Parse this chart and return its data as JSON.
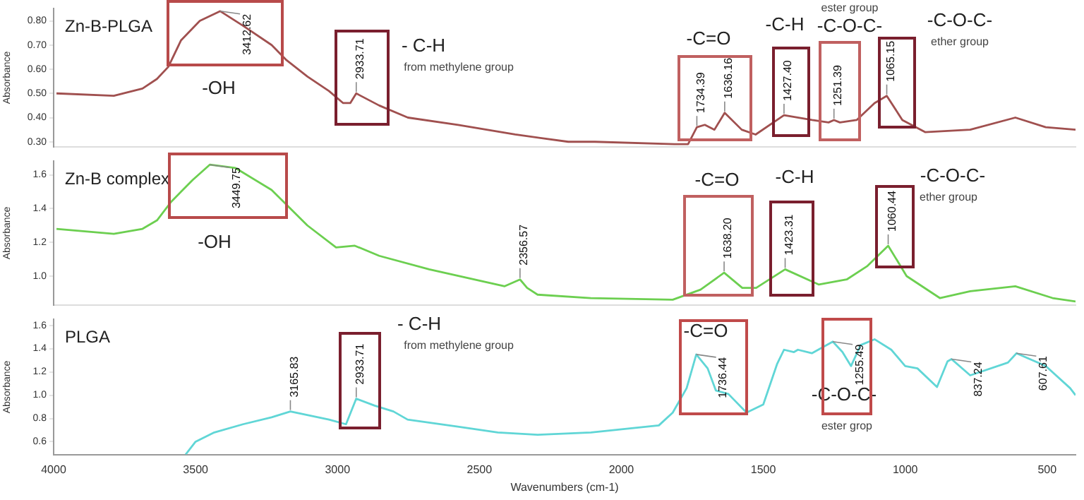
{
  "chart_data": [
    {
      "type": "line",
      "title": "Zn-B-PLGA",
      "ylabel": "Absorbance",
      "xlim": [
        4000,
        400
      ],
      "ylim": [
        0.28,
        0.85
      ],
      "yticks": [
        {
          "value": 0.3,
          "label": "0.30"
        },
        {
          "value": 0.4,
          "label": "0.40"
        },
        {
          "value": 0.5,
          "label": "0.50"
        },
        {
          "value": 0.6,
          "label": "0.60"
        },
        {
          "value": 0.7,
          "label": "0.70"
        },
        {
          "value": 0.8,
          "label": "0.80"
        }
      ],
      "tick_labels": "y",
      "marker": "none",
      "series": [
        {
          "color": "#a0504f",
          "x": [
            3990,
            3788,
            3687,
            3636,
            3596,
            3551,
            3485,
            3413,
            3333,
            3232,
            3182,
            3106,
            3030,
            2980,
            2955,
            2934,
            2853,
            2752,
            2575,
            2374,
            2187,
            2093,
            1813,
            1765,
            1734,
            1706,
            1672,
            1636,
            1576,
            1527,
            1427,
            1328,
            1270,
            1251,
            1230,
            1171,
            1108,
            1065,
            1010,
            930,
            771,
            612,
            505,
            400
          ],
          "values": [
            0.5,
            0.49,
            0.52,
            0.56,
            0.61,
            0.72,
            0.8,
            0.84,
            0.78,
            0.7,
            0.64,
            0.57,
            0.51,
            0.46,
            0.46,
            0.5,
            0.45,
            0.4,
            0.37,
            0.33,
            0.3,
            0.3,
            0.29,
            0.29,
            0.36,
            0.37,
            0.35,
            0.42,
            0.35,
            0.33,
            0.41,
            0.39,
            0.38,
            0.39,
            0.38,
            0.39,
            0.46,
            0.49,
            0.39,
            0.34,
            0.35,
            0.4,
            0.36,
            0.35
          ]
        }
      ],
      "annotations": [
        {
          "text": "3412.62",
          "x": 3413,
          "y": 0.84
        },
        {
          "text": "2933.71",
          "x": 2934,
          "y": 0.5
        },
        {
          "text": "1734.39",
          "x": 1734,
          "y": 0.36
        },
        {
          "text": "1636.16",
          "x": 1636,
          "y": 0.42
        },
        {
          "text": "1427.40",
          "x": 1427,
          "y": 0.41
        },
        {
          "text": "1251.39",
          "x": 1251,
          "y": 0.39
        },
        {
          "text": "1065.15",
          "x": 1065,
          "y": 0.49
        },
        "-OH",
        "- C-H",
        "from methylene group",
        "-C=O",
        "-C-H",
        "ester group",
        "-C-O-C-",
        "-C-O-C-",
        "ether group"
      ]
    },
    {
      "type": "line",
      "title": "Zn-B complex",
      "ylabel": "Absorbance",
      "xlim": [
        4000,
        400
      ],
      "ylim": [
        0.83,
        1.68
      ],
      "yticks": [
        {
          "value": 1.0,
          "label": "1.0"
        },
        {
          "value": 1.2,
          "label": "1.2"
        },
        {
          "value": 1.4,
          "label": "1.4"
        },
        {
          "value": 1.6,
          "label": "1.6"
        }
      ],
      "tick_labels": "y",
      "marker": "none",
      "series": [
        {
          "color": "#6ccf50",
          "x": [
            3990,
            3788,
            3687,
            3636,
            3586,
            3510,
            3450,
            3359,
            3232,
            3106,
            3005,
            2939,
            2853,
            2677,
            2411,
            2357,
            2332,
            2295,
            2108,
            1819,
            1721,
            1638,
            1574,
            1525,
            1423,
            1304,
            1206,
            1133,
            1060,
            995,
            878,
            771,
            612,
            481,
            400
          ],
          "values": [
            1.28,
            1.25,
            1.28,
            1.33,
            1.44,
            1.57,
            1.66,
            1.64,
            1.51,
            1.3,
            1.17,
            1.18,
            1.12,
            1.04,
            0.94,
            0.98,
            0.93,
            0.89,
            0.87,
            0.86,
            0.92,
            1.02,
            0.93,
            0.93,
            1.04,
            0.95,
            0.98,
            1.06,
            1.18,
            1.0,
            0.87,
            0.91,
            0.94,
            0.87,
            0.85
          ]
        }
      ],
      "annotations": [
        {
          "text": "3449.75",
          "x": 3450,
          "y": 1.66
        },
        {
          "text": "2356.57",
          "x": 2357,
          "y": 0.98
        },
        {
          "text": "1638.20",
          "x": 1638,
          "y": 1.02
        },
        {
          "text": "1423.31",
          "x": 1423,
          "y": 1.04
        },
        {
          "text": "1060.44",
          "x": 1060,
          "y": 1.18
        },
        "-OH",
        "-C=O",
        "-C-H",
        "-C-O-C-",
        "ether group"
      ]
    },
    {
      "type": "line",
      "title": "PLGA",
      "ylabel": "Absorbance",
      "xlabel": "Wavenumbers (cm-1)",
      "xlim": [
        4000,
        400
      ],
      "xticks": [
        4000,
        3500,
        3000,
        2500,
        2000,
        1500,
        1000,
        500
      ],
      "ylim": [
        0.49,
        1.65
      ],
      "yticks": [
        {
          "value": 0.6,
          "label": "0.6"
        },
        {
          "value": 0.8,
          "label": "0.8"
        },
        {
          "value": 1.0,
          "label": "1.0"
        },
        {
          "value": 1.2,
          "label": "1.2"
        },
        {
          "value": 1.4,
          "label": "1.4"
        },
        {
          "value": 1.6,
          "label": "1.6"
        }
      ],
      "marker": "none",
      "series": [
        {
          "color": "#60d6d6",
          "x": [
            3535,
            3500,
            3434,
            3333,
            3232,
            3166,
            3030,
            2970,
            2934,
            2869,
            2803,
            2753,
            2576,
            2435,
            2295,
            2107,
            1868,
            1819,
            1770,
            1736,
            1696,
            1667,
            1623,
            1559,
            1500,
            1451,
            1427,
            1392,
            1378,
            1329,
            1255,
            1221,
            1191,
            1157,
            1108,
            1049,
            1000,
            957,
            888,
            851,
            837,
            771,
            638,
            608,
            505,
            419,
            400
          ],
          "values": [
            0.49,
            0.6,
            0.68,
            0.75,
            0.81,
            0.86,
            0.79,
            0.75,
            0.97,
            0.91,
            0.86,
            0.79,
            0.73,
            0.68,
            0.66,
            0.68,
            0.74,
            0.85,
            1.06,
            1.35,
            1.23,
            1.04,
            1.01,
            0.85,
            0.92,
            1.27,
            1.39,
            1.37,
            1.39,
            1.36,
            1.46,
            1.37,
            1.25,
            1.43,
            1.48,
            1.39,
            1.25,
            1.23,
            1.07,
            1.29,
            1.31,
            1.17,
            1.28,
            1.36,
            1.25,
            1.06,
            1.0
          ]
        }
      ],
      "annotations": [
        {
          "text": "3165.83",
          "x": 3166,
          "y": 0.86
        },
        {
          "text": "2933.71",
          "x": 2934,
          "y": 0.97
        },
        {
          "text": "1736.44",
          "x": 1736,
          "y": 1.35
        },
        {
          "text": "1255.49",
          "x": 1255,
          "y": 1.46
        },
        {
          "text": "837.24",
          "x": 837,
          "y": 1.31
        },
        {
          "text": "607.61",
          "x": 608,
          "y": 1.36
        },
        "- C-H",
        "from methylene group",
        "-C=O",
        "-C-O-C-",
        "ester grop"
      ]
    }
  ]
}
